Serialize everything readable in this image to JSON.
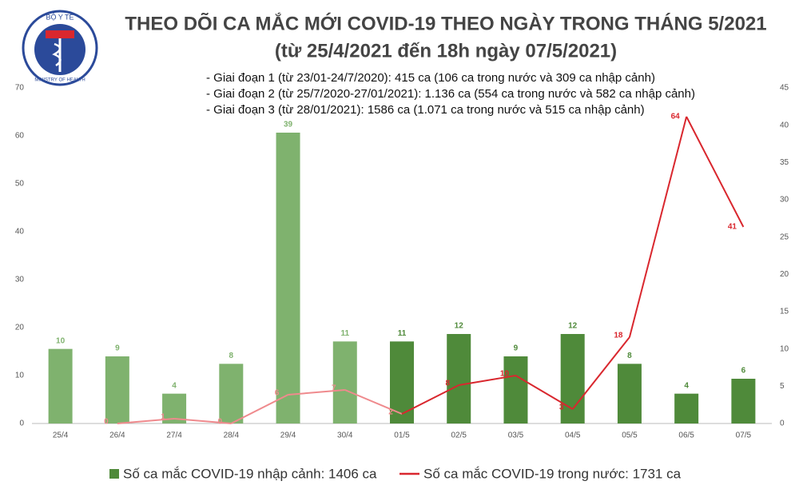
{
  "chart_data": {
    "type": "bar-line",
    "title": "THEO DÕI CA MẮC MỚI COVID-19 THEO NGÀY TRONG THÁNG 5/2021",
    "subtitle": "(từ 25/4/2021 đến 18h ngày 07/5/2021)",
    "annotations": [
      "- Giai đoạn 1 (từ 23/01-24/7/2020): 415 ca (106 ca trong nước và 309 ca nhập cảnh)",
      "- Giai đoạn 2 (từ 25/7/2020-27/01/2021): 1.136 ca (554 ca trong nước và 582 ca nhập cảnh)",
      "- Giai đoạn 3 (từ 28/01/2021): 1586 ca (1.071 ca trong nước và 515 ca nhập cảnh)"
    ],
    "logo": {
      "top": "BỘ Y TẾ",
      "bottom": "MINISTRY OF HEALTH"
    },
    "categories": [
      "25/4",
      "26/4",
      "27/4",
      "28/4",
      "29/4",
      "30/4",
      "01/5",
      "02/5",
      "03/5",
      "04/5",
      "05/5",
      "06/5",
      "07/5"
    ],
    "series": [
      {
        "name": "Số ca mắc COVID-19 nhập cảnh: 1406 ca",
        "type": "bar",
        "axis": "y2",
        "color": "#4f8a3a",
        "values": [
          10,
          9,
          4,
          8,
          39,
          11,
          11,
          12,
          9,
          12,
          8,
          4,
          6
        ],
        "colors": [
          "#7fb26e",
          "#7fb26e",
          "#7fb26e",
          "#7fb26e",
          "#7fb26e",
          "#7fb26e",
          "#4f8a3a",
          "#4f8a3a",
          "#4f8a3a",
          "#4f8a3a",
          "#4f8a3a",
          "#4f8a3a",
          "#4f8a3a"
        ]
      },
      {
        "name": "Số ca mắc COVID-19 trong nước: 1731 ca",
        "type": "line",
        "axis": "y",
        "color": "#d9272e",
        "values": [
          null,
          0,
          1,
          0,
          6,
          7,
          2,
          8,
          10,
          3,
          18,
          64,
          41
        ],
        "colors": [
          null,
          "#ef8a8d",
          "#ef8a8d",
          "#ef8a8d",
          "#ef8a8d",
          "#ef8a8d",
          "#ef8a8d",
          "#d9272e",
          "#d9272e",
          "#d9272e",
          "#d9272e",
          "#d9272e",
          "#d9272e"
        ]
      }
    ],
    "ylim": [
      0,
      70
    ],
    "yticks": [
      0,
      10,
      20,
      30,
      40,
      50,
      60,
      70
    ],
    "y2lim": [
      0,
      45
    ],
    "y2ticks": [
      0,
      5,
      10,
      15,
      20,
      25,
      30,
      35,
      40,
      45
    ]
  }
}
